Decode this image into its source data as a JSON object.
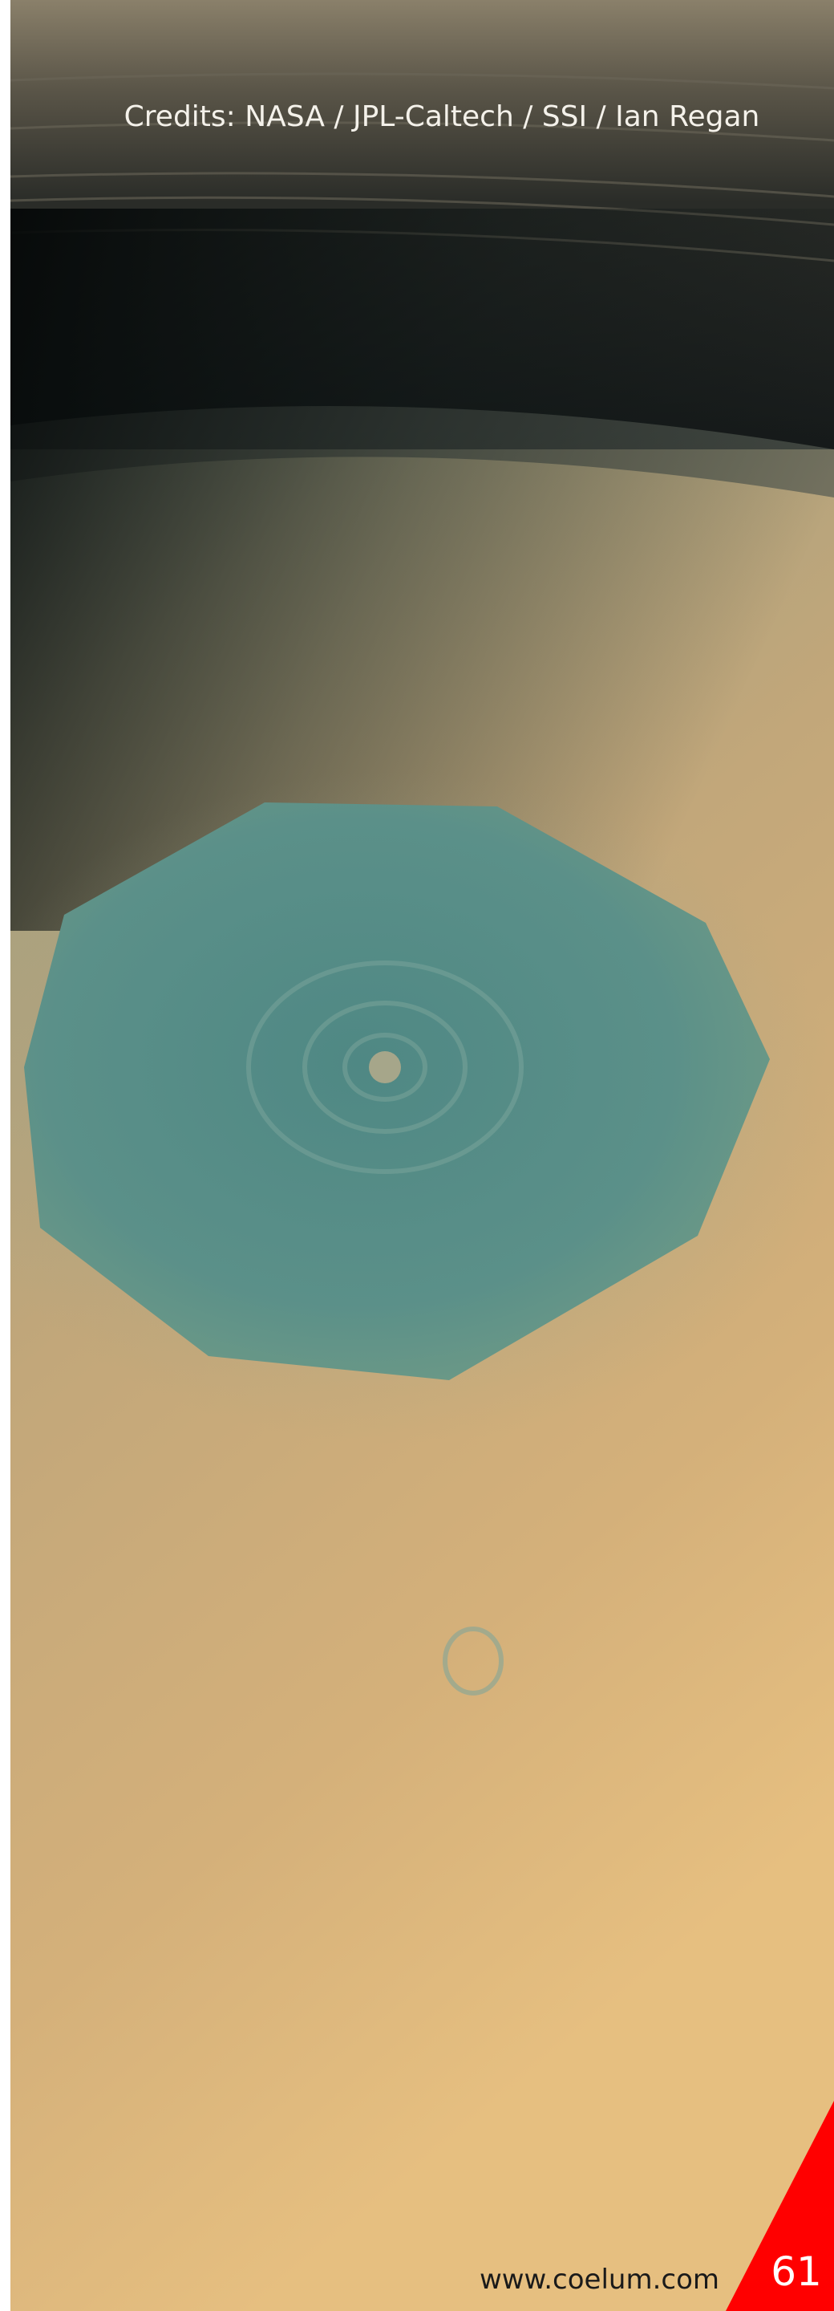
{
  "credits": "Credits: NASA / JPL-Caltech / SSI / Ian Regan",
  "footer": {
    "website": "www.coelum.com",
    "page_number": "61"
  }
}
